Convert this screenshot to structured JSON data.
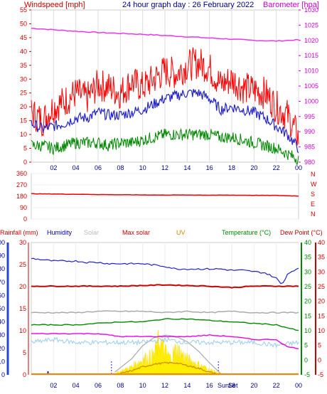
{
  "chart_data": [
    {
      "type": "line",
      "title": "24 hour graph day : 26 February 2022",
      "left_axis_label": "Windspeed [mph]",
      "right_axis_label": "Barometer [hpa]",
      "x_ticks": [
        "02",
        "04",
        "06",
        "08",
        "10",
        "12",
        "14",
        "16",
        "18",
        "20",
        "22",
        "00"
      ],
      "y_left": {
        "min": 0,
        "max": 55,
        "ticks": [
          0,
          5,
          10,
          15,
          20,
          25,
          30,
          35,
          40,
          45,
          50,
          55
        ]
      },
      "y_right": {
        "min": 980,
        "max": 1030,
        "ticks": [
          980,
          985,
          990,
          995,
          1000,
          1005,
          1010,
          1015,
          1020,
          1025,
          1030
        ]
      },
      "series": [
        {
          "name": "Barometer",
          "axis": "right",
          "color": "#ee33ee",
          "x": [
            0,
            2,
            4,
            6,
            8,
            10,
            12,
            14,
            16,
            18,
            20,
            22,
            24
          ],
          "values": [
            1024,
            1023.5,
            1023,
            1022.6,
            1022.3,
            1022,
            1021.6,
            1021.2,
            1020.8,
            1020.4,
            1020,
            1019.8,
            1020.2
          ]
        },
        {
          "name": "Gust",
          "axis": "left",
          "color": "#ff0000",
          "x": [
            0,
            1,
            2,
            3,
            4,
            5,
            6,
            7,
            8,
            9,
            10,
            11,
            12,
            13,
            14,
            15,
            16,
            17,
            18,
            19,
            20,
            21,
            22,
            23,
            24
          ],
          "values": [
            18,
            15,
            20,
            22,
            25,
            23,
            28,
            27,
            25,
            29,
            27,
            30,
            33,
            32,
            35,
            36,
            34,
            28,
            30,
            27,
            26,
            25,
            20,
            17,
            9
          ]
        },
        {
          "name": "Windspeed",
          "axis": "left",
          "color": "#2222cc",
          "x": [
            0,
            1,
            2,
            3,
            4,
            5,
            6,
            7,
            8,
            9,
            10,
            11,
            12,
            13,
            14,
            15,
            16,
            17,
            18,
            19,
            20,
            21,
            22,
            23,
            24
          ],
          "values": [
            14,
            12,
            13,
            14,
            16,
            16,
            18,
            17,
            17,
            18,
            19,
            21,
            23,
            24,
            25,
            25,
            23,
            19,
            20,
            19,
            18,
            16,
            13,
            10,
            5
          ]
        },
        {
          "name": "Average",
          "axis": "left",
          "color": "#008800",
          "x": [
            0,
            1,
            2,
            3,
            4,
            5,
            6,
            7,
            8,
            9,
            10,
            11,
            12,
            13,
            14,
            15,
            16,
            17,
            18,
            19,
            20,
            21,
            22,
            23,
            24
          ],
          "values": [
            6,
            6,
            5,
            6,
            7,
            7,
            7,
            6,
            7,
            7,
            8,
            9,
            10,
            10,
            10,
            10,
            10,
            9,
            9,
            8,
            7,
            6,
            5,
            3,
            1
          ]
        }
      ]
    },
    {
      "type": "line",
      "title": "",
      "right_axis_label": "N W S E N",
      "x_ticks": [],
      "y_left": {
        "min": 0,
        "max": 360,
        "ticks": [
          0,
          90,
          180,
          270,
          360
        ]
      },
      "direction_labels": [
        "N",
        "W",
        "S",
        "E",
        "N"
      ],
      "series": [
        {
          "name": "Wind direction",
          "color": "#ee0000",
          "x": [
            0,
            2,
            4,
            6,
            8,
            10,
            12,
            14,
            16,
            18,
            20,
            22,
            24
          ],
          "values": [
            200,
            198,
            196,
            194,
            192,
            191,
            190,
            190,
            189,
            189,
            188,
            187,
            182
          ]
        }
      ]
    },
    {
      "type": "line",
      "title": "",
      "legend": [
        "Rainfall (mm)",
        "Humidity",
        "Solar",
        "Max solar",
        "UV",
        "Temperature (°C)",
        "Dew Point (°C)"
      ],
      "legend_colors": [
        "#cc0000",
        "#000099",
        "#bbbbbb",
        "#cc0000",
        "#cc8800",
        "#008800",
        "#cc0000"
      ],
      "x_ticks": [
        "02",
        "04",
        "06",
        "08",
        "10",
        "12",
        "14",
        "16",
        "18",
        "20",
        "22",
        "00"
      ],
      "sunrise_label": "Sun",
      "sunset_label": "Set",
      "axis_rainfall": {
        "min": 0,
        "max": 30,
        "ticks": [
          0,
          5,
          10,
          15,
          20,
          25,
          30
        ]
      },
      "axis_humidity": {
        "min": 0,
        "max": 100,
        "ticks": [
          0,
          10,
          20,
          30,
          40,
          50,
          60,
          70,
          80,
          90,
          100
        ]
      },
      "axis_temperature": {
        "min": -5,
        "max": 40,
        "ticks": [
          -5,
          0,
          5,
          10,
          15,
          20,
          25,
          30,
          35,
          40
        ]
      },
      "series": [
        {
          "name": "Humidity",
          "axis": "humidity",
          "color": "#2222cc",
          "x": [
            0,
            1,
            2,
            3,
            4,
            5,
            6,
            7,
            8,
            9,
            10,
            11,
            12,
            13,
            14,
            15,
            16,
            17,
            18,
            19,
            20,
            21,
            22,
            22.5,
            23,
            23.5,
            24
          ],
          "values": [
            88,
            87,
            86,
            86,
            86,
            85,
            85,
            84,
            84,
            84,
            84,
            83,
            82,
            80,
            80,
            80,
            80,
            80,
            79,
            79,
            78,
            77,
            73,
            68,
            76,
            79,
            80
          ]
        },
        {
          "name": "Rain rate",
          "axis": "humidity",
          "color": "#cc0000",
          "x": [
            0,
            4,
            8,
            12,
            16,
            18,
            20,
            24
          ],
          "values": [
            67,
            67,
            67,
            68,
            67,
            66,
            67,
            67
          ]
        },
        {
          "name": "Solar",
          "axis": "humidity",
          "color": "#aaaaaa",
          "x": [
            0,
            4,
            6,
            8,
            10,
            12,
            14,
            16,
            18,
            20,
            22,
            24
          ],
          "values": [
            47,
            47,
            48,
            48,
            48,
            47,
            48,
            47,
            48,
            47,
            47,
            47
          ]
        },
        {
          "name": "Temperature",
          "axis": "temperature",
          "color": "#008800",
          "x": [
            0,
            2,
            4,
            6,
            8,
            10,
            12,
            14,
            16,
            18,
            20,
            22,
            24
          ],
          "values": [
            12,
            12,
            12,
            12.5,
            13,
            13,
            14,
            14,
            13.5,
            13,
            12.5,
            12,
            10
          ]
        },
        {
          "name": "Dew Point",
          "axis": "temperature",
          "color": "#ee00ee",
          "x": [
            0,
            2,
            4,
            6,
            8,
            10,
            12,
            14,
            16,
            18,
            20,
            22,
            23,
            24
          ],
          "values": [
            9,
            9,
            9,
            9,
            8,
            8,
            8,
            8,
            8.5,
            8,
            7,
            7,
            4.5,
            4
          ]
        },
        {
          "name": "Humidity trace",
          "axis": "temperature",
          "color": "#99ccee",
          "x": [
            0,
            2,
            4,
            6,
            8,
            10,
            12,
            14,
            16,
            18,
            20,
            22,
            24
          ],
          "values": [
            6,
            7,
            6,
            6,
            6,
            6,
            7,
            6,
            6,
            6,
            6,
            5,
            6
          ]
        },
        {
          "name": "Max solar",
          "axis": "humidity",
          "color": "#aaaaaa",
          "x": [
            7.5,
            9,
            10,
            11,
            12,
            13,
            14,
            15,
            16,
            17
          ],
          "values": [
            2,
            12,
            22,
            28,
            30,
            29,
            25,
            18,
            9,
            1
          ]
        },
        {
          "name": "Solar radiation",
          "axis": "humidity",
          "color": "#ffee00",
          "x": [
            7.5,
            9,
            10,
            11,
            11.5,
            12,
            12.5,
            13,
            14,
            15,
            16,
            17
          ],
          "values": [
            1,
            6,
            12,
            15,
            27,
            18,
            13,
            20,
            12,
            8,
            4,
            1
          ]
        },
        {
          "name": "UV",
          "axis": "humidity",
          "color": "#cc8800",
          "x": [
            8,
            9,
            10,
            11,
            12,
            13,
            14,
            15,
            16,
            17
          ],
          "values": [
            1,
            3,
            6,
            8,
            9,
            9,
            7,
            5,
            2,
            0
          ]
        }
      ]
    }
  ]
}
